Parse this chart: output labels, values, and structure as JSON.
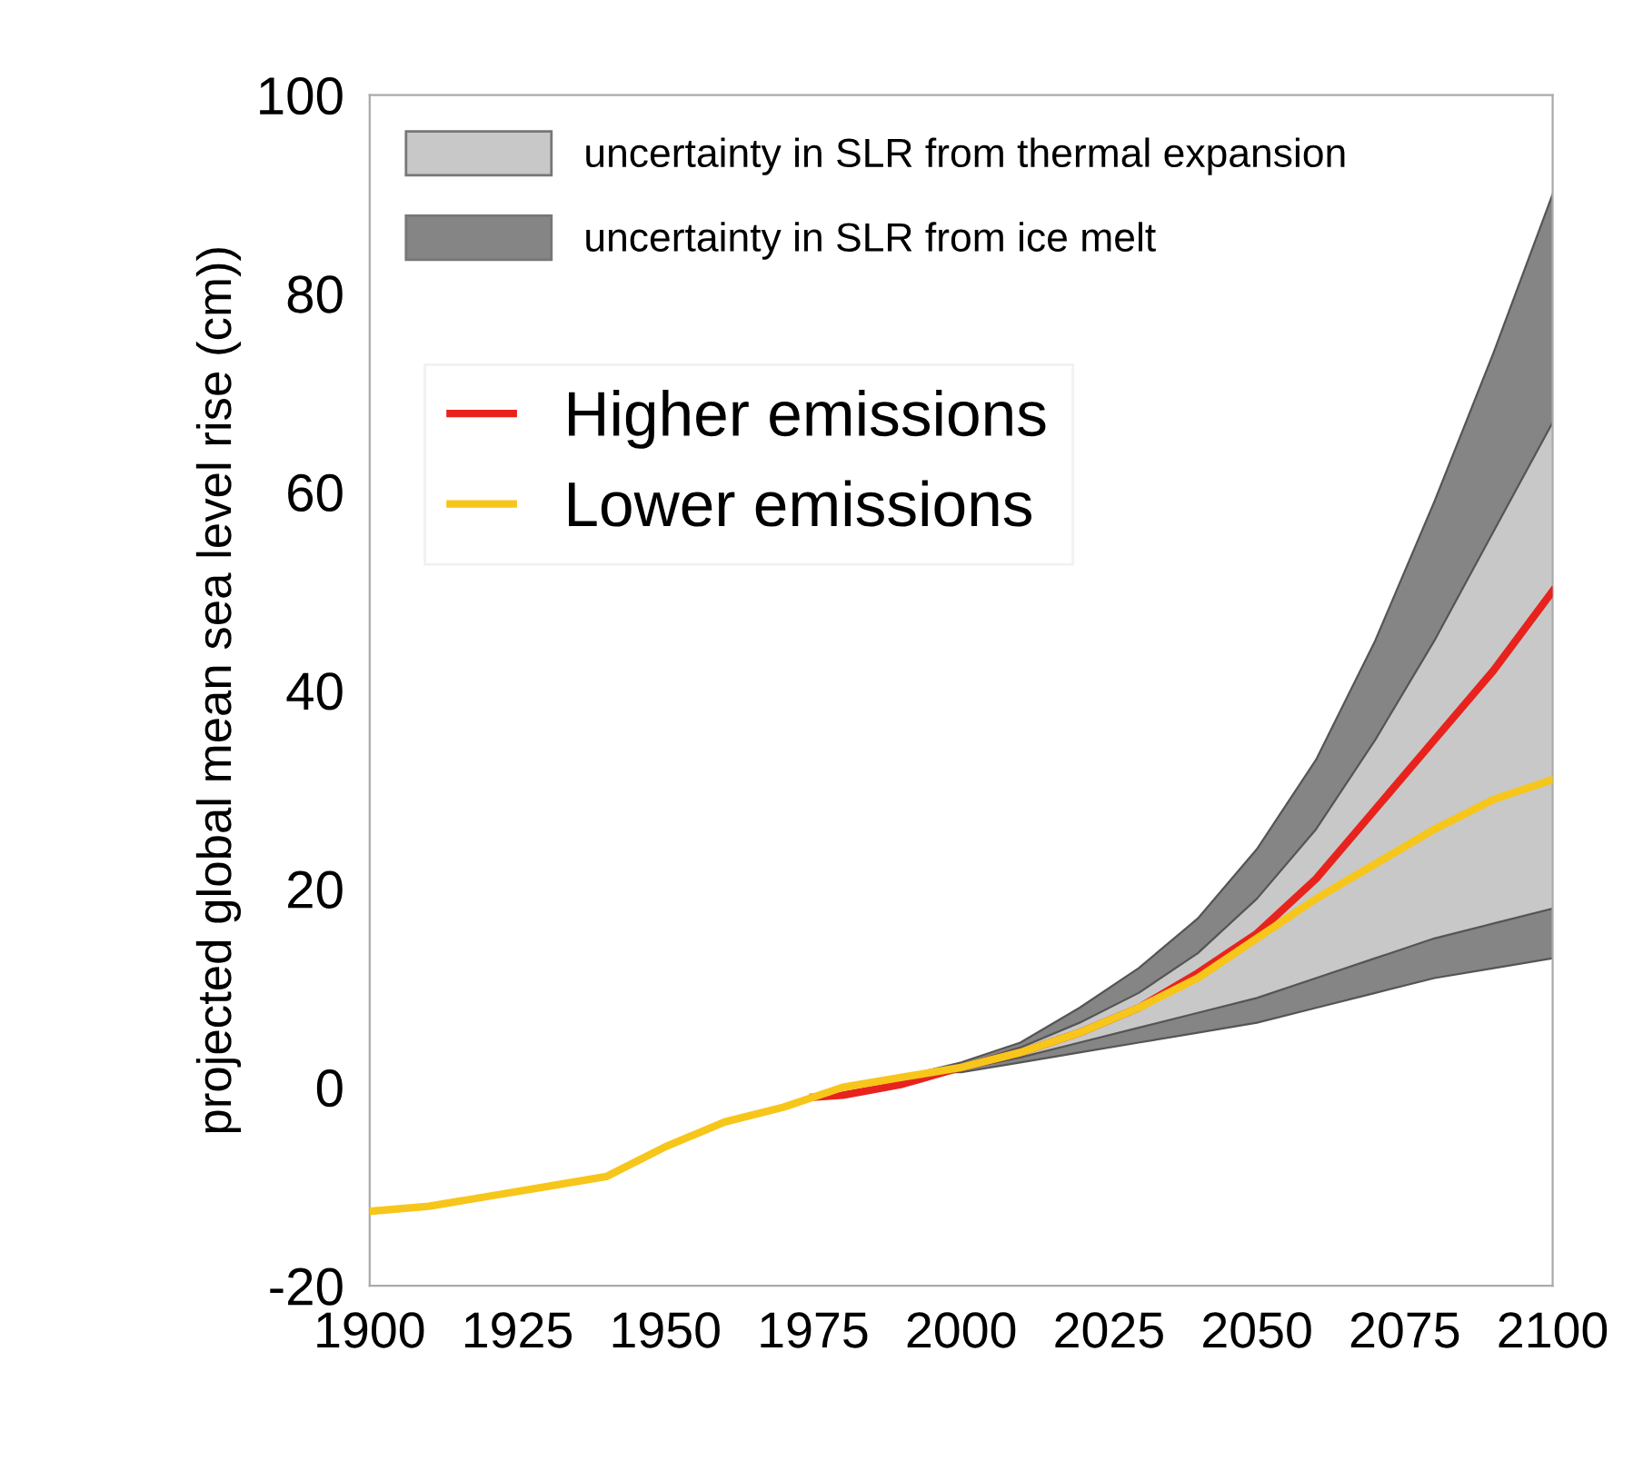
{
  "chart_data": {
    "type": "line",
    "ylabel": "projected global mean sea level rise (cm))",
    "xlim": [
      1900,
      2100
    ],
    "xticks": [
      1900,
      1925,
      1950,
      1975,
      2000,
      2025,
      2050,
      2075,
      2100
    ],
    "ylim": [
      -20,
      100
    ],
    "yticks": [
      -20,
      0,
      20,
      40,
      60,
      80,
      100
    ],
    "grid": false,
    "legend": "top left",
    "stacked": true,
    "series": [
      {
        "type": "area",
        "color": "#ffffff",
        "x": [
          1993,
          2000,
          2010,
          2020,
          2030,
          2040,
          2050,
          2060,
          2070,
          2080,
          2090,
          2100
        ],
        "values": [
          1.5,
          1.5,
          2.5,
          3.5,
          4.5,
          5.5,
          6.5,
          8,
          9.5,
          11,
          12,
          13
        ]
      },
      {
        "name": "uncertainty in SLR from ice melt",
        "type": "area",
        "color": "#858585",
        "x": [
          1993,
          2000,
          2010,
          2020,
          2030,
          2040,
          2050,
          2060,
          2070,
          2080,
          2090,
          2100
        ],
        "values": [
          0,
          0.3,
          0.5,
          1,
          1.5,
          2,
          2.5,
          3,
          3.5,
          4,
          4.5,
          5
        ]
      },
      {
        "name": "uncertainty in SLR from thermal expansion",
        "type": "area",
        "color": "#c8c8c8",
        "x": [
          1993,
          2000,
          2010,
          2020,
          2030,
          2040,
          2050,
          2060,
          2070,
          2080,
          2090,
          2100
        ],
        "values": [
          0,
          0.4,
          1,
          2,
          3.5,
          6,
          10,
          15,
          22,
          30,
          39.5,
          49
        ]
      },
      {
        "type": "area",
        "color": "#858585",
        "x": [
          1993,
          2000,
          2010,
          2020,
          2030,
          2040,
          2050,
          2060,
          2070,
          2080,
          2090,
          2100
        ],
        "values": [
          0,
          0.3,
          0.5,
          1.5,
          2.5,
          3.5,
          5,
          7,
          10,
          14,
          18,
          23
        ]
      },
      {
        "name": "Higher emissions",
        "color": "#e8231e",
        "x": [
          1975,
          1980,
          1990,
          2000,
          2010,
          2020,
          2030,
          2040,
          2050,
          2060,
          2070,
          2080,
          2090,
          2100
        ],
        "values": [
          -1,
          -0.8,
          0.3,
          2,
          3.5,
          5.5,
          8,
          11.5,
          15.5,
          21,
          28,
          35,
          42,
          50
        ]
      },
      {
        "name": "Lower emissions",
        "color": "#f7c61b",
        "x": [
          1900,
          1910,
          1920,
          1930,
          1940,
          1950,
          1960,
          1970,
          1980,
          1990,
          2000,
          2010,
          2020,
          2030,
          2040,
          2050,
          2060,
          2070,
          2080,
          2090,
          2100
        ],
        "values": [
          -12.5,
          -12,
          -11,
          -10,
          -9,
          -6,
          -3.5,
          -2,
          0,
          1,
          2,
          3.5,
          5.5,
          8,
          11,
          15,
          19,
          22.5,
          26,
          29,
          31
        ]
      }
    ]
  }
}
